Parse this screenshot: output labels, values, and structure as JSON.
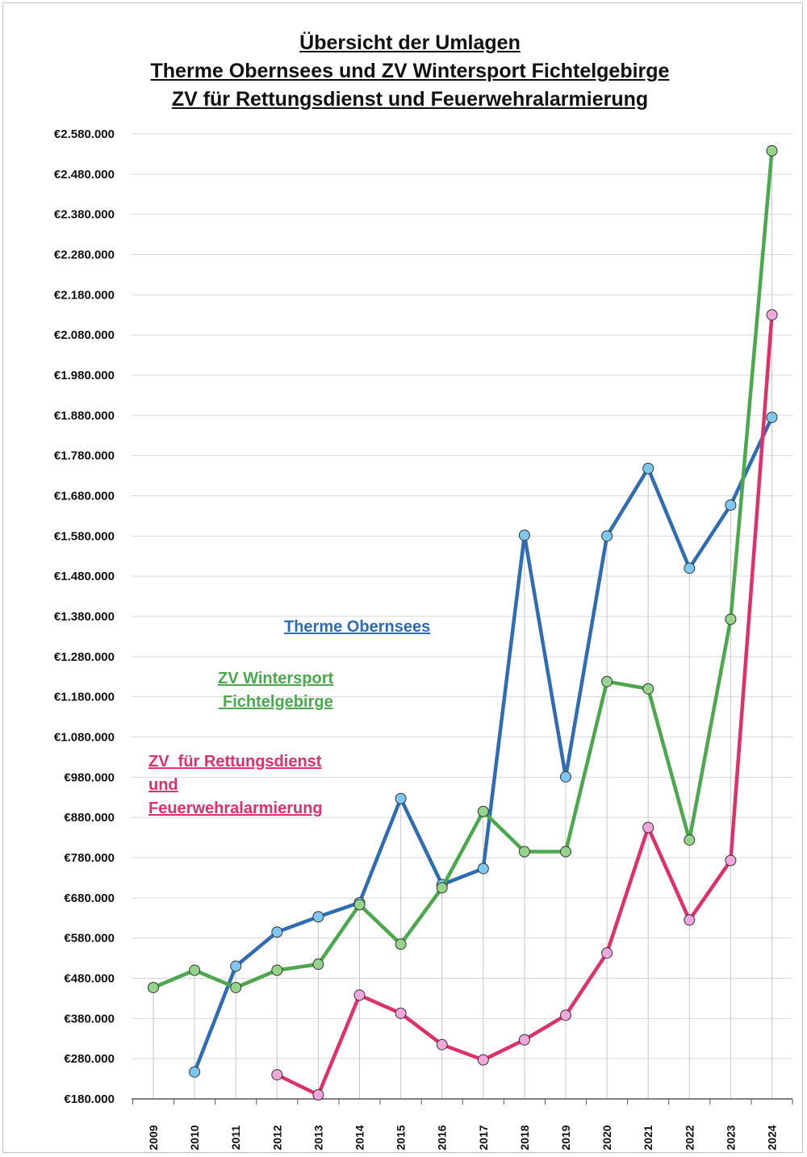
{
  "title_lines": [
    "Übersicht der Umlagen",
    "Therme Obernsees und ZV Wintersport Fichtelgebirge",
    "ZV für Rettungsdienst und Feuerwehralarmierung"
  ],
  "chart_data": {
    "type": "line",
    "title": "Übersicht der Umlagen Therme Obernsees und ZV Wintersport Fichtelgebirge ZV für Rettungsdienst und Feuerwehralarmierung",
    "xlabel": "",
    "ylabel": "",
    "categories": [
      "2009",
      "2010",
      "2011",
      "2012",
      "2013",
      "2014",
      "2015",
      "2016",
      "2017",
      "2018",
      "2019",
      "2020",
      "2021",
      "2022",
      "2023",
      "2024"
    ],
    "ylim": [
      180000,
      2580000
    ],
    "yticks": [
      180000,
      280000,
      380000,
      480000,
      580000,
      680000,
      780000,
      880000,
      980000,
      1080000,
      1180000,
      1280000,
      1380000,
      1480000,
      1580000,
      1680000,
      1780000,
      1880000,
      1980000,
      2080000,
      2180000,
      2280000,
      2380000,
      2480000,
      2580000
    ],
    "ytick_labels": [
      "€180.000",
      "€280.000",
      "€380.000",
      "€480.000",
      "€580.000",
      "€680.000",
      "€780.000",
      "€880.000",
      "€980.000",
      "€1.080.000",
      "€1.180.000",
      "€1.280.000",
      "€1.380.000",
      "€1.480.000",
      "€1.580.000",
      "€1.680.000",
      "€1.780.000",
      "€1.880.000",
      "€1.980.000",
      "€2.080.000",
      "€2.180.000",
      "€2.280.000",
      "€2.380.000",
      "€2.480.000",
      "€2.580.000"
    ],
    "grid": "horizontal and vertical",
    "legend": "inline labels inside plot area",
    "series": [
      {
        "name": "Therme Obernsees",
        "label_lines": [
          "Therme Obernsees"
        ],
        "line_color": "#2E6DB4",
        "marker_color": "#7EC8F0",
        "values": [
          null,
          247000,
          510000,
          595000,
          633000,
          668000,
          927000,
          713000,
          753000,
          1582000,
          981000,
          1580000,
          1748000,
          1500000,
          1657000,
          1875000
        ]
      },
      {
        "name": "ZV Wintersport Fichtelgebirge",
        "label_lines": [
          "ZV Wintersport",
          " Fichtelgebirge"
        ],
        "line_color": "#4CA84C",
        "marker_color": "#96D48C",
        "values": [
          457000,
          500000,
          457000,
          500000,
          515000,
          663000,
          565000,
          705000,
          895000,
          795000,
          795000,
          1218000,
          1200000,
          824000,
          1373000,
          2538000
        ]
      },
      {
        "name": "ZV für Rettungsdienst und Feuerwehralarmierung",
        "label_lines": [
          "ZV  für Rettungsdienst",
          "und",
          "Feuerwehralarmierung"
        ],
        "line_color": "#E0306A",
        "marker_color": "#F0A8DC",
        "values": [
          null,
          null,
          null,
          240000,
          190000,
          438000,
          393000,
          315000,
          277000,
          327000,
          388000,
          543000,
          855000,
          625000,
          773000,
          2130000
        ]
      }
    ]
  }
}
